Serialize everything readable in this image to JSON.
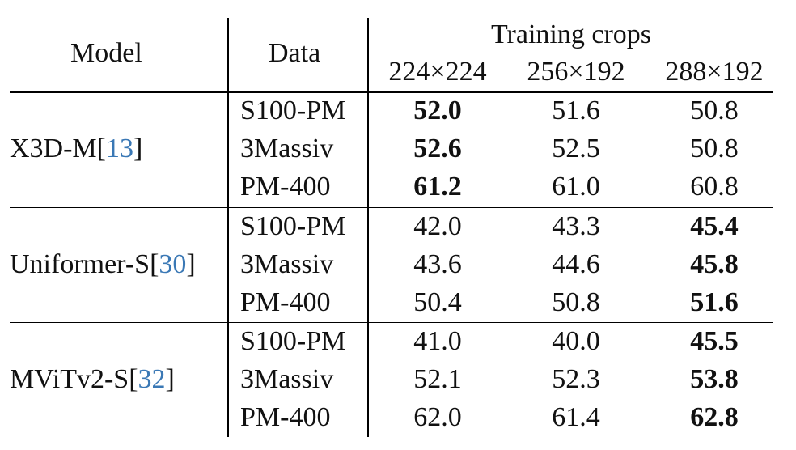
{
  "header": {
    "model": "Model",
    "data": "Data",
    "group": "Training crops",
    "crops": [
      "224×224",
      "256×192",
      "288×192"
    ]
  },
  "groups": [
    {
      "model_name": "X3D-M",
      "citation": "13",
      "rows": [
        {
          "data": "S100-PM",
          "values": [
            "52.0",
            "51.6",
            "50.8"
          ],
          "bold": [
            true,
            false,
            false
          ]
        },
        {
          "data": "3Massiv",
          "values": [
            "52.6",
            "52.5",
            "50.8"
          ],
          "bold": [
            true,
            false,
            false
          ]
        },
        {
          "data": "PM-400",
          "values": [
            "61.2",
            "61.0",
            "60.8"
          ],
          "bold": [
            true,
            false,
            false
          ]
        }
      ]
    },
    {
      "model_name": "Uniformer-S",
      "citation": "30",
      "rows": [
        {
          "data": "S100-PM",
          "values": [
            "42.0",
            "43.3",
            "45.4"
          ],
          "bold": [
            false,
            false,
            true
          ]
        },
        {
          "data": "3Massiv",
          "values": [
            "43.6",
            "44.6",
            "45.8"
          ],
          "bold": [
            false,
            false,
            true
          ]
        },
        {
          "data": "PM-400",
          "values": [
            "50.4",
            "50.8",
            "51.6"
          ],
          "bold": [
            false,
            false,
            true
          ]
        }
      ]
    },
    {
      "model_name": "MViTv2-S",
      "citation": "32",
      "rows": [
        {
          "data": "S100-PM",
          "values": [
            "41.0",
            "40.0",
            "45.5"
          ],
          "bold": [
            false,
            false,
            true
          ]
        },
        {
          "data": "3Massiv",
          "values": [
            "52.1",
            "52.3",
            "53.8"
          ],
          "bold": [
            false,
            false,
            true
          ]
        },
        {
          "data": "PM-400",
          "values": [
            "62.0",
            "61.4",
            "62.8"
          ],
          "bold": [
            false,
            false,
            true
          ]
        }
      ]
    }
  ],
  "colors": {
    "citation": "#3a78b5"
  }
}
